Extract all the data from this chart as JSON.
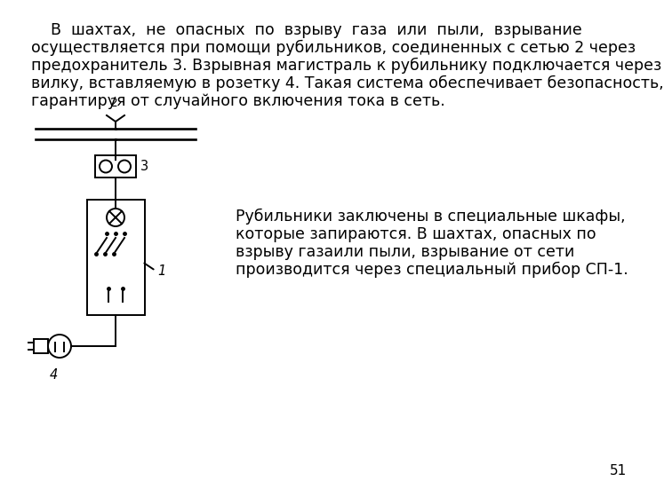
{
  "bg_color": "#ffffff",
  "text_color": "#000000",
  "page_number": "51",
  "lines1": [
    "    В  шахтах,  не  опасных  по  взрыву  газа  или  пыли,  взрывание",
    "осуществляется при помощи рубильников, соединенных с сетью 2 через",
    "предохранитель 3. Взрывная магистраль к рубильнику подключается через",
    "вилку, вставляемую в розетку 4. Такая система обеспечивает безопасность,",
    "гарантируя от случайного включения тока в сеть."
  ],
  "lines2": [
    "Рубильники заключены в специальные шкафы,",
    "которые запираются. В шахтах, опасных по",
    "взрыву газаили пыли, взрывание от сети",
    "производится через специальный прибор СП-1."
  ],
  "font_size_main": 12.5,
  "font_size_caption": 12.5,
  "lc": "#000000",
  "lw": 1.4
}
